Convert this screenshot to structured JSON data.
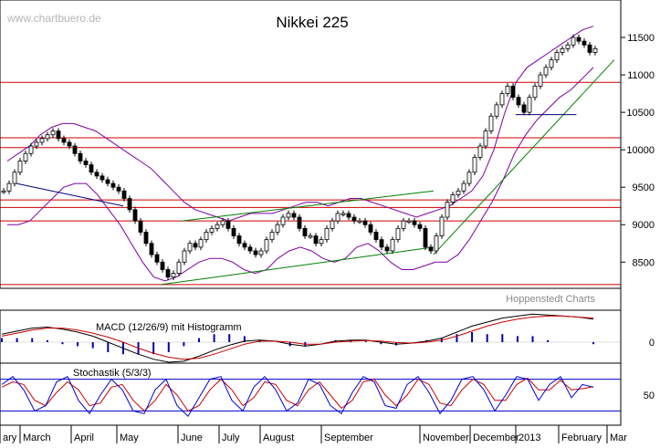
{
  "chart_data": {
    "type": "candlestick",
    "title": "Nikkei 225",
    "watermark": "www.chartbuero.de",
    "credit": "Hoppenstedt Charts",
    "price_axis": {
      "ticks": [
        8500,
        9000,
        9500,
        10000,
        10500,
        11000,
        11500
      ],
      "ylim": [
        8150,
        12000
      ]
    },
    "months": [
      "ary",
      "March",
      "April",
      "May",
      "June",
      "July",
      "August",
      "September",
      "November",
      "December",
      "2013",
      "February",
      "Mar"
    ],
    "horizontal_levels": [
      8200,
      9050,
      9230,
      9330,
      10030,
      10160,
      10900
    ],
    "price_series": {
      "description": "approximate daily closes read from the chart",
      "start": "2012-02-20",
      "closes": [
        9450,
        9550,
        9700,
        9850,
        9950,
        10050,
        10100,
        10150,
        10200,
        10250,
        10150,
        10100,
        10050,
        9950,
        9850,
        9800,
        9700,
        9650,
        9600,
        9550,
        9500,
        9450,
        9350,
        9200,
        9050,
        8900,
        8750,
        8600,
        8500,
        8400,
        8300,
        8350,
        8500,
        8650,
        8750,
        8700,
        8800,
        8900,
        8950,
        9000,
        9050,
        8950,
        8850,
        8750,
        8700,
        8650,
        8600,
        8650,
        8800,
        8900,
        9000,
        9100,
        9150,
        9100,
        8950,
        8850,
        8850,
        8750,
        8800,
        8950,
        9050,
        9150,
        9150,
        9100,
        9050,
        9050,
        9000,
        8900,
        8800,
        8700,
        8650,
        8800,
        8950,
        9050,
        9050,
        9000,
        8950,
        8700,
        8650,
        8850,
        9100,
        9300,
        9400,
        9450,
        9550,
        9700,
        9900,
        10050,
        10250,
        10450,
        10600,
        10750,
        10850,
        10700,
        10600,
        10500,
        10700,
        10850,
        11000,
        11100,
        11200,
        11300,
        11350,
        11400,
        11500,
        11450,
        11400,
        11300,
        11350
      ]
    },
    "upper_band": [
      9850,
      9950,
      10050,
      10200,
      10300,
      10350,
      10350,
      10300,
      10250,
      10150,
      10050,
      9950,
      9850,
      9750,
      9600,
      9450,
      9300,
      9200,
      9150,
      9100,
      9050,
      9100,
      9150,
      9150,
      9150,
      9200,
      9250,
      9300,
      9300,
      9250,
      9300,
      9350,
      9350,
      9300,
      9250,
      9200,
      9150,
      9100,
      9150,
      9200,
      9250,
      9350,
      9450,
      9650,
      10000,
      10500,
      10900,
      11100,
      11200,
      11300,
      11400,
      11500,
      11600,
      11650
    ],
    "lower_band": [
      9000,
      9000,
      9050,
      9200,
      9350,
      9500,
      9550,
      9550,
      9400,
      9200,
      9000,
      8750,
      8500,
      8300,
      8250,
      8300,
      8400,
      8500,
      8550,
      8550,
      8500,
      8400,
      8350,
      8400,
      8550,
      8650,
      8700,
      8650,
      8550,
      8500,
      8550,
      8700,
      8750,
      8650,
      8500,
      8400,
      8400,
      8450,
      8500,
      8500,
      8600,
      8800,
      9050,
      9300,
      9600,
      9950,
      10200,
      10400,
      10550,
      10700,
      10800,
      10950,
      11100
    ],
    "trend_lines": [
      {
        "from": [
          "2012-05-28",
          8200
        ],
        "to": [
          "2012-11-10",
          8700
        ],
        "color": "#008000"
      },
      {
        "from": [
          "2012-06-10",
          9050
        ],
        "to": [
          "2012-11-10",
          9450
        ],
        "color": "#008000"
      },
      {
        "from": [
          "2012-11-10",
          8600
        ],
        "to": [
          "2013-02-28",
          11200
        ],
        "color": "#008000"
      },
      {
        "from": [
          "2012-03-01",
          9550
        ],
        "to": [
          "2012-05-05",
          9250
        ],
        "color": "#000080"
      },
      {
        "from": [
          "2012-12-30",
          10470
        ],
        "to": [
          "2013-02-05",
          10470
        ],
        "color": "#000080"
      }
    ],
    "macd_panel": {
      "label": "MACD (12/26/9) mit Histogramm",
      "ticks": [
        0
      ],
      "macd": [
        0.4,
        0.55,
        0.7,
        0.75,
        0.65,
        0.5,
        0.3,
        0.0,
        -0.3,
        -0.6,
        -0.85,
        -1.0,
        -0.95,
        -0.7,
        -0.4,
        -0.15,
        0.05,
        0.1,
        0.05,
        -0.1,
        -0.2,
        -0.1,
        0.05,
        0.1,
        0.1,
        0.0,
        -0.1,
        -0.05,
        0.05,
        0.2,
        0.5,
        0.8,
        1.0,
        1.2,
        1.3,
        1.4,
        1.35,
        1.3,
        1.25,
        1.15
      ],
      "signal": [
        0.3,
        0.45,
        0.6,
        0.7,
        0.7,
        0.6,
        0.45,
        0.25,
        0.0,
        -0.3,
        -0.55,
        -0.75,
        -0.85,
        -0.8,
        -0.6,
        -0.35,
        -0.1,
        0.05,
        0.05,
        0.0,
        -0.1,
        -0.1,
        0.0,
        0.05,
        0.08,
        0.05,
        -0.02,
        -0.05,
        0.0,
        0.1,
        0.3,
        0.55,
        0.8,
        1.0,
        1.15,
        1.25,
        1.3,
        1.3,
        1.25,
        1.2
      ]
    },
    "stoch_panel": {
      "label": "Stochastik (5/3/3)",
      "ticks": [
        50
      ],
      "levels": [
        20,
        80
      ],
      "k": [
        70,
        85,
        60,
        20,
        30,
        75,
        85,
        40,
        15,
        50,
        80,
        60,
        20,
        15,
        60,
        80,
        30,
        10,
        45,
        80,
        85,
        40,
        20,
        65,
        85,
        60,
        20,
        35,
        80,
        70,
        30,
        15,
        55,
        85,
        75,
        30,
        25,
        70,
        85,
        55,
        15,
        40,
        80,
        85,
        60,
        20,
        50,
        85,
        80,
        40,
        70,
        85,
        45,
        70,
        65
      ],
      "d": [
        65,
        75,
        70,
        40,
        30,
        55,
        75,
        60,
        30,
        35,
        65,
        70,
        40,
        20,
        40,
        70,
        50,
        20,
        30,
        60,
        80,
        60,
        30,
        45,
        75,
        70,
        40,
        30,
        60,
        75,
        50,
        25,
        40,
        75,
        80,
        50,
        30,
        50,
        80,
        70,
        35,
        30,
        60,
        80,
        70,
        40,
        40,
        70,
        82,
        60,
        60,
        78,
        60,
        62,
        66
      ]
    }
  }
}
